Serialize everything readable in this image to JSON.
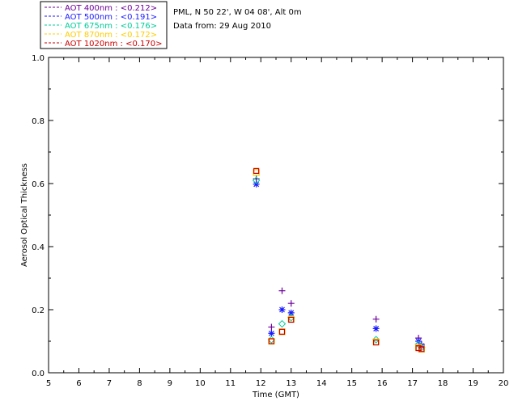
{
  "header": {
    "site": "PML, N 50 22', W 04 08', Alt 0m",
    "date": "Data from: 29 Aug 2010"
  },
  "chart_data": {
    "type": "scatter",
    "xlabel": "Time (GMT)",
    "ylabel": "Aerosol Optical Thickness",
    "xlim": [
      5,
      20
    ],
    "ylim": [
      0,
      1.0
    ],
    "xticks": [
      "5",
      "6",
      "7",
      "8",
      "9",
      "10",
      "11",
      "12",
      "13",
      "14",
      "15",
      "16",
      "17",
      "18",
      "19",
      "20"
    ],
    "yticks": [
      "0.0",
      "0.2",
      "0.4",
      "0.6",
      "0.8",
      "1.0"
    ],
    "legend_position": "top-left",
    "series": [
      {
        "name": "AOT  400nm : <0.212>",
        "color": "#6b0099",
        "marker": "plus",
        "x": [
          11.85,
          12.35,
          12.7,
          13.0,
          15.8,
          17.2,
          17.3
        ],
        "y": [
          0.615,
          0.145,
          0.26,
          0.22,
          0.17,
          0.11,
          0.09
        ]
      },
      {
        "name": "AOT  500nm : <0.191>",
        "color": "#1a1aff",
        "marker": "asterisk",
        "x": [
          11.85,
          12.35,
          12.7,
          13.0,
          15.8,
          17.2,
          17.3
        ],
        "y": [
          0.598,
          0.125,
          0.2,
          0.19,
          0.14,
          0.1,
          0.085
        ]
      },
      {
        "name": "AOT  675nm : <0.176>",
        "color": "#00cc99",
        "marker": "diamond",
        "x": [
          11.85,
          12.35,
          12.7,
          13.0,
          15.8,
          17.2,
          17.3
        ],
        "y": [
          0.61,
          0.105,
          0.155,
          0.175,
          0.105,
          0.09,
          0.08
        ]
      },
      {
        "name": "AOT  870nm : <0.172>",
        "color": "#ffcc00",
        "marker": "square",
        "x": [
          11.85,
          12.35,
          12.7,
          13.0,
          15.8,
          17.2,
          17.3
        ],
        "y": [
          0.635,
          0.1,
          0.13,
          0.17,
          0.098,
          0.08,
          0.075
        ]
      },
      {
        "name": "AOT 1020nm : <0.170>",
        "color": "#cc0000",
        "marker": "square",
        "x": [
          11.85,
          12.35,
          12.7,
          13.0,
          15.8,
          17.2,
          17.3
        ],
        "y": [
          0.64,
          0.1,
          0.13,
          0.168,
          0.096,
          0.078,
          0.075
        ]
      }
    ]
  }
}
